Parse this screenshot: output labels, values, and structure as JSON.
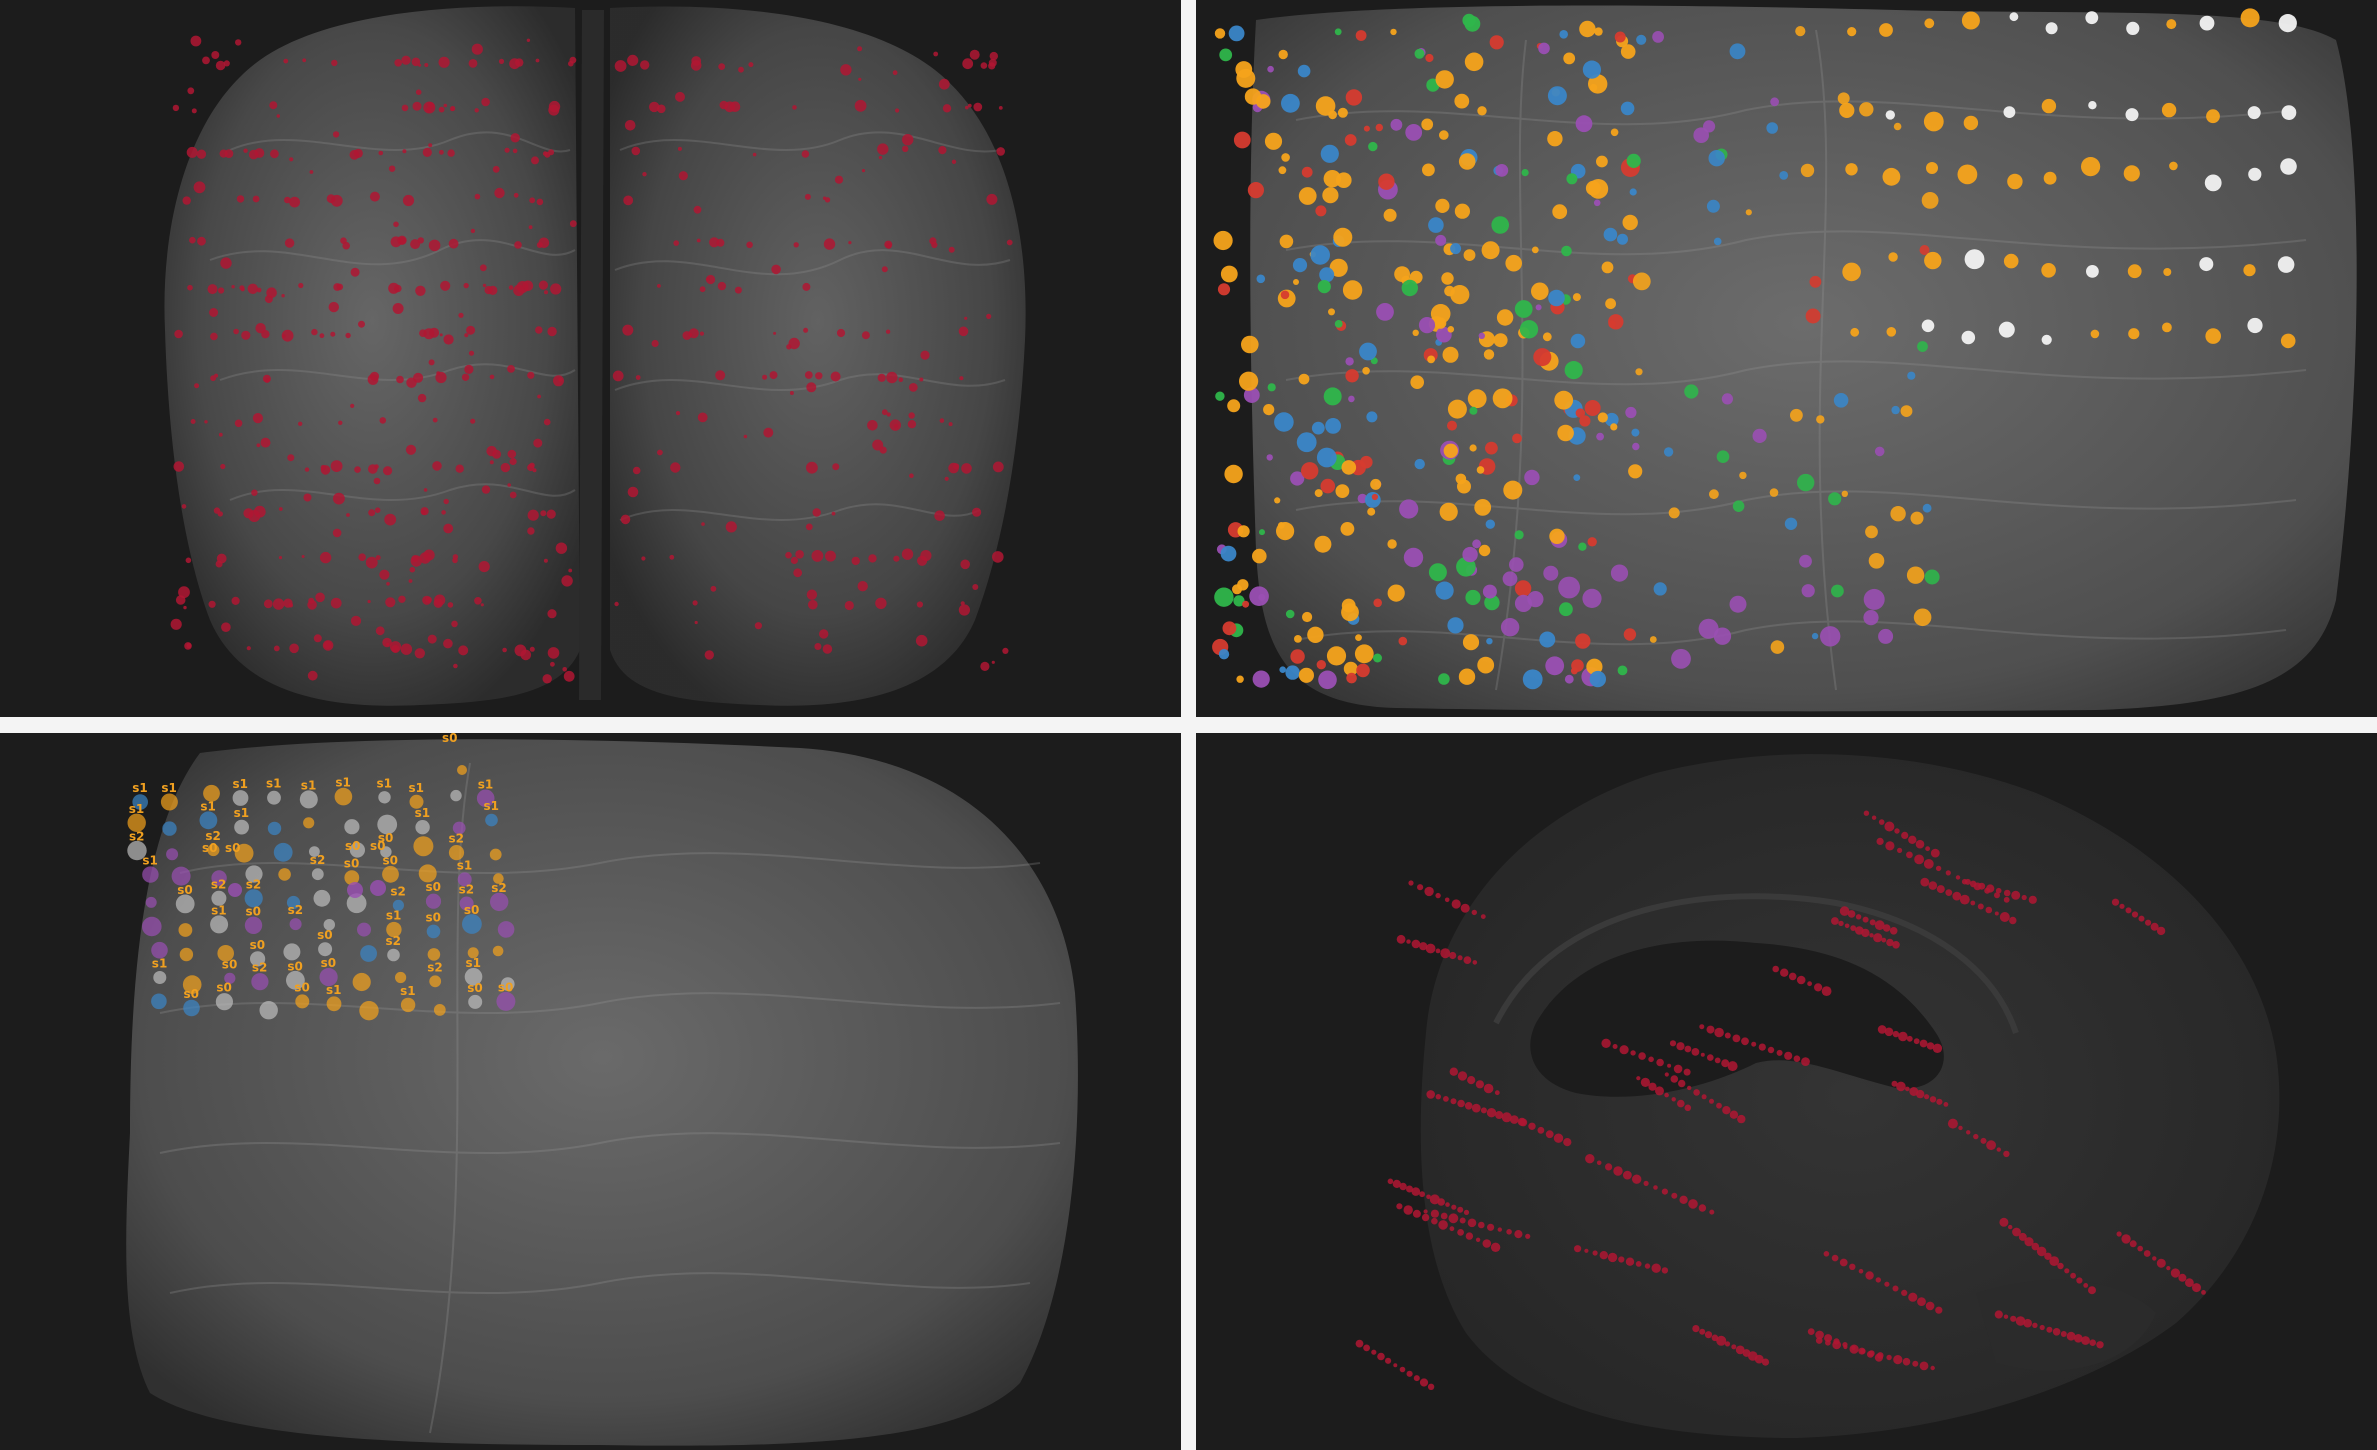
{
  "colors": {
    "panel_bg": "#1c1c1c",
    "brain_tissue": "#5a5a5a",
    "brain_highlight": "#7c7c7c",
    "crimson": "#b01632",
    "orange": "#f5a31b",
    "blue": "#3a86c8",
    "red": "#d63b2f",
    "green": "#2fb64b",
    "purple": "#9a4fb3",
    "white": "#f2f2f2",
    "gray_marker": "#bdbdbd",
    "label_orange": "#f0a020"
  },
  "panels": [
    {
      "id": "axial-all-electrodes",
      "view": "axial",
      "marker_color": "crimson"
    },
    {
      "id": "axial-colored-regions",
      "view": "axial",
      "marker_color": "multi"
    },
    {
      "id": "coronal-labeled-contacts",
      "view": "coronal",
      "marker_color": "multi"
    },
    {
      "id": "sagittal-trajectories",
      "view": "sagittal",
      "marker_color": "crimson"
    }
  ],
  "contact_labels": {
    "s0": "s0",
    "s1": "s1",
    "s2": "s2"
  }
}
